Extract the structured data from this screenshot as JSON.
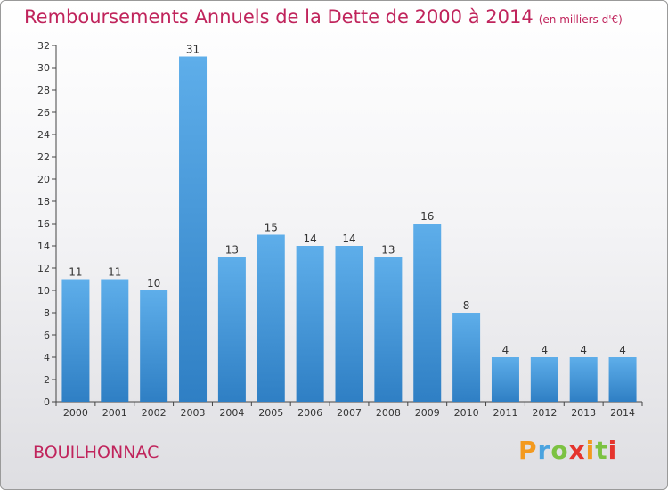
{
  "title": "Remboursements Annuels de la Dette de 2000 à 2014",
  "subtitle": "(en milliers d'€)",
  "commune": "BOUILHONNAC",
  "logo": {
    "letters": [
      "P",
      "r",
      "o",
      "x",
      "i",
      "t",
      "i"
    ],
    "colors": [
      "#f39a1f",
      "#4aa3df",
      "#7cc242",
      "#e5342d",
      "#f39a1f",
      "#7cc242",
      "#e5342d"
    ]
  },
  "colors": {
    "bar_light": "#5eaeea",
    "bar_dark": "#2f7fc4",
    "title": "#c0245c"
  },
  "chart_data": {
    "type": "bar",
    "categories": [
      "2000",
      "2001",
      "2002",
      "2003",
      "2004",
      "2005",
      "2006",
      "2007",
      "2008",
      "2009",
      "2010",
      "2011",
      "2012",
      "2013",
      "2014"
    ],
    "values": [
      11,
      11,
      10,
      31,
      13,
      15,
      14,
      14,
      13,
      16,
      8,
      4,
      4,
      4,
      4
    ],
    "title": "Remboursements Annuels de la Dette de 2000 à 2014",
    "subtitle": "(en milliers d'€)",
    "xlabel": "",
    "ylabel": "",
    "ylim": [
      0,
      32
    ],
    "yticks": [
      0,
      2,
      4,
      6,
      8,
      10,
      12,
      14,
      16,
      18,
      20,
      22,
      24,
      26,
      28,
      30,
      32
    ],
    "grid": false,
    "legend": "none"
  }
}
